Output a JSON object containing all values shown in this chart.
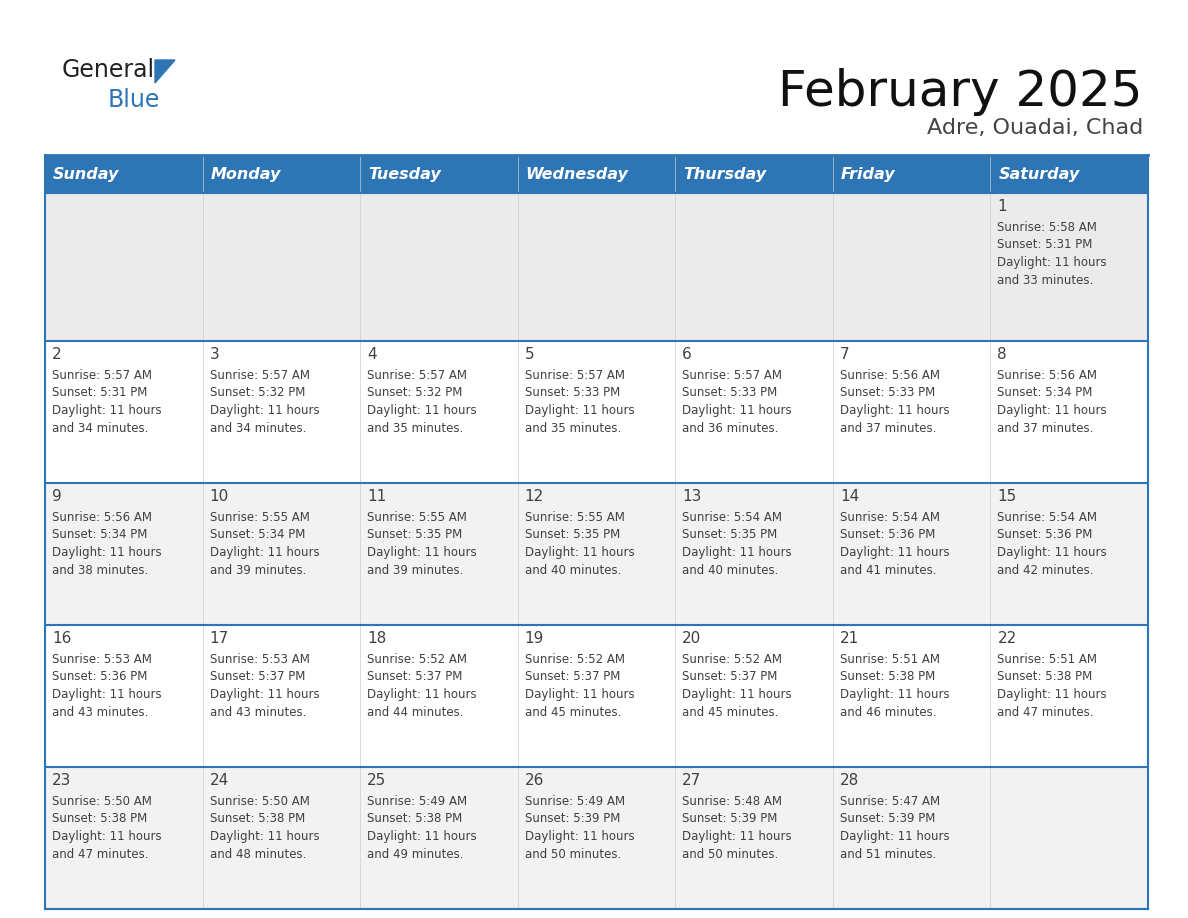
{
  "title": "February 2025",
  "subtitle": "Adre, Ouadai, Chad",
  "header_bg": "#2E75B6",
  "header_text_color": "#FFFFFF",
  "row0_bg": "#EBEBEB",
  "row_bg_white": "#FFFFFF",
  "row_bg_gray": "#F2F2F2",
  "border_color": "#2E75B6",
  "text_color": "#404040",
  "day_headers": [
    "Sunday",
    "Monday",
    "Tuesday",
    "Wednesday",
    "Thursday",
    "Friday",
    "Saturday"
  ],
  "calendar_data": [
    [
      null,
      null,
      null,
      null,
      null,
      null,
      {
        "day": 1,
        "sunrise": "5:58 AM",
        "sunset": "5:31 PM",
        "daylight_h": "11 hours",
        "daylight_m": "and 33 minutes."
      }
    ],
    [
      {
        "day": 2,
        "sunrise": "5:57 AM",
        "sunset": "5:31 PM",
        "daylight_h": "11 hours",
        "daylight_m": "and 34 minutes."
      },
      {
        "day": 3,
        "sunrise": "5:57 AM",
        "sunset": "5:32 PM",
        "daylight_h": "11 hours",
        "daylight_m": "and 34 minutes."
      },
      {
        "day": 4,
        "sunrise": "5:57 AM",
        "sunset": "5:32 PM",
        "daylight_h": "11 hours",
        "daylight_m": "and 35 minutes."
      },
      {
        "day": 5,
        "sunrise": "5:57 AM",
        "sunset": "5:33 PM",
        "daylight_h": "11 hours",
        "daylight_m": "and 35 minutes."
      },
      {
        "day": 6,
        "sunrise": "5:57 AM",
        "sunset": "5:33 PM",
        "daylight_h": "11 hours",
        "daylight_m": "and 36 minutes."
      },
      {
        "day": 7,
        "sunrise": "5:56 AM",
        "sunset": "5:33 PM",
        "daylight_h": "11 hours",
        "daylight_m": "and 37 minutes."
      },
      {
        "day": 8,
        "sunrise": "5:56 AM",
        "sunset": "5:34 PM",
        "daylight_h": "11 hours",
        "daylight_m": "and 37 minutes."
      }
    ],
    [
      {
        "day": 9,
        "sunrise": "5:56 AM",
        "sunset": "5:34 PM",
        "daylight_h": "11 hours",
        "daylight_m": "and 38 minutes."
      },
      {
        "day": 10,
        "sunrise": "5:55 AM",
        "sunset": "5:34 PM",
        "daylight_h": "11 hours",
        "daylight_m": "and 39 minutes."
      },
      {
        "day": 11,
        "sunrise": "5:55 AM",
        "sunset": "5:35 PM",
        "daylight_h": "11 hours",
        "daylight_m": "and 39 minutes."
      },
      {
        "day": 12,
        "sunrise": "5:55 AM",
        "sunset": "5:35 PM",
        "daylight_h": "11 hours",
        "daylight_m": "and 40 minutes."
      },
      {
        "day": 13,
        "sunrise": "5:54 AM",
        "sunset": "5:35 PM",
        "daylight_h": "11 hours",
        "daylight_m": "and 40 minutes."
      },
      {
        "day": 14,
        "sunrise": "5:54 AM",
        "sunset": "5:36 PM",
        "daylight_h": "11 hours",
        "daylight_m": "and 41 minutes."
      },
      {
        "day": 15,
        "sunrise": "5:54 AM",
        "sunset": "5:36 PM",
        "daylight_h": "11 hours",
        "daylight_m": "and 42 minutes."
      }
    ],
    [
      {
        "day": 16,
        "sunrise": "5:53 AM",
        "sunset": "5:36 PM",
        "daylight_h": "11 hours",
        "daylight_m": "and 43 minutes."
      },
      {
        "day": 17,
        "sunrise": "5:53 AM",
        "sunset": "5:37 PM",
        "daylight_h": "11 hours",
        "daylight_m": "and 43 minutes."
      },
      {
        "day": 18,
        "sunrise": "5:52 AM",
        "sunset": "5:37 PM",
        "daylight_h": "11 hours",
        "daylight_m": "and 44 minutes."
      },
      {
        "day": 19,
        "sunrise": "5:52 AM",
        "sunset": "5:37 PM",
        "daylight_h": "11 hours",
        "daylight_m": "and 45 minutes."
      },
      {
        "day": 20,
        "sunrise": "5:52 AM",
        "sunset": "5:37 PM",
        "daylight_h": "11 hours",
        "daylight_m": "and 45 minutes."
      },
      {
        "day": 21,
        "sunrise": "5:51 AM",
        "sunset": "5:38 PM",
        "daylight_h": "11 hours",
        "daylight_m": "and 46 minutes."
      },
      {
        "day": 22,
        "sunrise": "5:51 AM",
        "sunset": "5:38 PM",
        "daylight_h": "11 hours",
        "daylight_m": "and 47 minutes."
      }
    ],
    [
      {
        "day": 23,
        "sunrise": "5:50 AM",
        "sunset": "5:38 PM",
        "daylight_h": "11 hours",
        "daylight_m": "and 47 minutes."
      },
      {
        "day": 24,
        "sunrise": "5:50 AM",
        "sunset": "5:38 PM",
        "daylight_h": "11 hours",
        "daylight_m": "and 48 minutes."
      },
      {
        "day": 25,
        "sunrise": "5:49 AM",
        "sunset": "5:38 PM",
        "daylight_h": "11 hours",
        "daylight_m": "and 49 minutes."
      },
      {
        "day": 26,
        "sunrise": "5:49 AM",
        "sunset": "5:39 PM",
        "daylight_h": "11 hours",
        "daylight_m": "and 50 minutes."
      },
      {
        "day": 27,
        "sunrise": "5:48 AM",
        "sunset": "5:39 PM",
        "daylight_h": "11 hours",
        "daylight_m": "and 50 minutes."
      },
      {
        "day": 28,
        "sunrise": "5:47 AM",
        "sunset": "5:39 PM",
        "daylight_h": "11 hours",
        "daylight_m": "and 51 minutes."
      },
      null
    ]
  ],
  "logo_text_general": "General",
  "logo_text_blue": "Blue",
  "logo_color_general": "#222222",
  "logo_color_blue": "#2E75B6",
  "logo_triangle_color": "#2E75B6"
}
